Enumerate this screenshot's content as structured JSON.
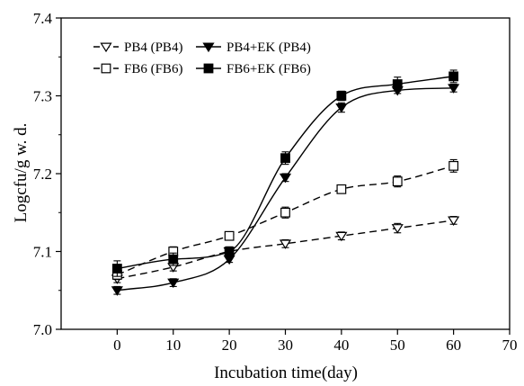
{
  "chart_data": {
    "type": "line",
    "title": "",
    "xlabel": "Incubation time(day)",
    "ylabel": "Logcfu/g w. d.",
    "xlim": [
      -10,
      70
    ],
    "ylim": [
      7.0,
      7.4
    ],
    "xticks": [
      "0",
      "10",
      "20",
      "30",
      "40",
      "50",
      "60",
      "70"
    ],
    "yticks": [
      "7.0",
      "7.1",
      "7.2",
      "7.3",
      "7.4"
    ],
    "grid": false,
    "legend_position": "top-left",
    "x": [
      0,
      10,
      20,
      30,
      40,
      50,
      60
    ],
    "series": [
      {
        "name": "PB4 (PB4)",
        "line_style": "dashed",
        "marker": "triangle-down-open",
        "values": [
          7.065,
          7.08,
          7.1,
          7.11,
          7.12,
          7.13,
          7.14
        ],
        "errors": [
          0.005,
          0.005,
          0.005,
          0.005,
          0.005,
          0.006,
          0.005
        ]
      },
      {
        "name": "PB4+EK (PB4)",
        "line_style": "solid",
        "marker": "triangle-down-filled",
        "values": [
          7.05,
          7.06,
          7.09,
          7.195,
          7.285,
          7.307,
          7.31
        ],
        "errors": [
          0.005,
          0.005,
          0.004,
          0.005,
          0.006,
          0.004,
          0.005
        ]
      },
      {
        "name": "FB6 (FB6)",
        "line_style": "dashed",
        "marker": "square-open",
        "values": [
          7.07,
          7.1,
          7.12,
          7.15,
          7.18,
          7.19,
          7.21
        ],
        "errors": [
          0.006,
          0.006,
          0.005,
          0.007,
          0.005,
          0.007,
          0.008
        ]
      },
      {
        "name": "FB6+EK (FB6)",
        "line_style": "solid",
        "marker": "square-filled",
        "values": [
          7.078,
          7.09,
          7.1,
          7.22,
          7.3,
          7.315,
          7.325
        ],
        "errors": [
          0.01,
          0.008,
          0.006,
          0.008,
          0.006,
          0.009,
          0.008
        ]
      }
    ]
  }
}
